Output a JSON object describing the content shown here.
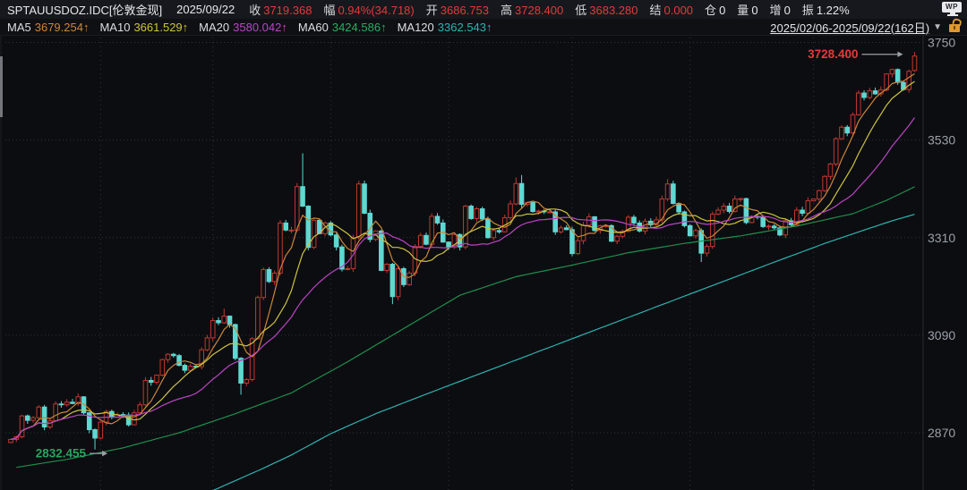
{
  "window": {
    "wp_label": "WP"
  },
  "header": {
    "symbol": "SPTAUUSDOZ.IDC[伦敦金现]",
    "date": "2025/09/22",
    "fields": [
      {
        "label": "收",
        "value": "3719.368",
        "color": "red"
      },
      {
        "label": "幅",
        "value": "0.94%(34.718)",
        "color": "red"
      },
      {
        "label": "开",
        "value": "3686.753",
        "color": "red"
      },
      {
        "label": "高",
        "value": "3728.400",
        "color": "red"
      },
      {
        "label": "低",
        "value": "3683.280",
        "color": "red"
      },
      {
        "label": "结",
        "value": "0.000",
        "color": "red"
      },
      {
        "label": "仓",
        "value": "0",
        "color": "white"
      },
      {
        "label": "量",
        "value": "0",
        "color": "white"
      },
      {
        "label": "增",
        "value": "0",
        "color": "white"
      },
      {
        "label": "振",
        "value": "1.22%",
        "color": "white"
      }
    ]
  },
  "ma_bar": {
    "items": [
      {
        "label": "MA5",
        "value": "3679.254",
        "arrow": "↑",
        "color": "#cc8636"
      },
      {
        "label": "MA10",
        "value": "3661.529",
        "arrow": "↑",
        "color": "#cdc33e"
      },
      {
        "label": "MA20",
        "value": "3580.042",
        "arrow": "↑",
        "color": "#bb44c4"
      },
      {
        "label": "MA60",
        "value": "3424.586",
        "arrow": "↑",
        "color": "#2cab5e"
      },
      {
        "label": "MA120",
        "value": "3362.543",
        "arrow": "↑",
        "color": "#2cb3b0"
      }
    ],
    "range": "2025/02/06-2025/09/22(162日)",
    "caret": "▼"
  },
  "chart_data": {
    "type": "candlestick",
    "title": "SPTAUUSDOZ.IDC 伦敦金现 日K 2025/02/06-2025/09/22",
    "y_ticks": [
      3750,
      3530,
      3310,
      3090,
      2870
    ],
    "y_range": [
      2870,
      3750
    ],
    "days": 162,
    "month_grid_days": [
      16,
      36,
      57,
      78,
      100,
      121,
      143
    ],
    "first_open": 2848,
    "closes": [
      2855,
      2861,
      2908,
      2898,
      2904,
      2928,
      2883,
      2897,
      2935,
      2933,
      2939,
      2936,
      2951,
      2915,
      2877,
      2858,
      2894,
      2918,
      2905,
      2911,
      2910,
      2888,
      2915,
      2933,
      2988,
      2984,
      3000,
      3035,
      3047,
      3044,
      3022,
      3011,
      3020,
      3019,
      3057,
      3084,
      3123,
      3118,
      3133,
      3114,
      3038,
      2982,
      2990,
      3082,
      3175,
      3238,
      3211,
      3230,
      3343,
      3327,
      3327,
      3425,
      3381,
      3288,
      3349,
      3319,
      3343,
      3316,
      3289,
      3239,
      3240,
      3310,
      3431,
      3365,
      3306,
      3325,
      3236,
      3250,
      3177,
      3240,
      3204,
      3230,
      3290,
      3315,
      3295,
      3358,
      3343,
      3300,
      3288,
      3317,
      3289,
      3381,
      3353,
      3375,
      3352,
      3310,
      3326,
      3323,
      3355,
      3386,
      3432,
      3385,
      3389,
      3369,
      3370,
      3368,
      3368,
      3323,
      3332,
      3328,
      3274,
      3303,
      3338,
      3357,
      3326,
      3337,
      3337,
      3302,
      3313,
      3324,
      3356,
      3343,
      3325,
      3347,
      3339,
      3350,
      3397,
      3431,
      3387,
      3368,
      3337,
      3314,
      3326,
      3275,
      3290,
      3363,
      3372,
      3381,
      3369,
      3397,
      3398,
      3344,
      3358,
      3357,
      3335,
      3336,
      3332,
      3316,
      3348,
      3339,
      3372,
      3365,
      3393,
      3397,
      3416,
      3448,
      3476,
      3533,
      3559,
      3546,
      3587,
      3636,
      3626,
      3641,
      3634,
      3643,
      3679,
      3689,
      3660,
      3644,
      3685,
      3719.368
    ],
    "open_overrides": {
      "0": 2848,
      "161": 3686.753
    },
    "high_overrides": {
      "38": 3150,
      "52": 3500,
      "62": 3438,
      "90": 3446,
      "91": 3451,
      "117": 3442,
      "118": 3438,
      "161": 3728.4
    },
    "low_overrides": {
      "15": 2832.455,
      "41": 2956,
      "68": 3160,
      "123": 3255,
      "161": 3683.28
    },
    "ma_overlays": [
      {
        "name": "MA5",
        "window": 5,
        "color": "#cc8636"
      },
      {
        "name": "MA10",
        "window": 10,
        "color": "#cdc33e"
      },
      {
        "name": "MA20",
        "window": 20,
        "color": "#bb44c4"
      },
      {
        "name": "MA60",
        "color": "#1f8f4d",
        "points": [
          [
            0,
            2790
          ],
          [
            10,
            2810
          ],
          [
            20,
            2836
          ],
          [
            30,
            2870
          ],
          [
            40,
            2913
          ],
          [
            50,
            2960
          ],
          [
            60,
            3030
          ],
          [
            70,
            3105
          ],
          [
            80,
            3180
          ],
          [
            90,
            3222
          ],
          [
            100,
            3248
          ],
          [
            110,
            3276
          ],
          [
            120,
            3297
          ],
          [
            130,
            3314
          ],
          [
            140,
            3336
          ],
          [
            150,
            3364
          ],
          [
            156,
            3394
          ],
          [
            161,
            3424.586
          ]
        ]
      },
      {
        "name": "MA120",
        "color": "#2cb3b0",
        "points": [
          [
            33,
            2723
          ],
          [
            40,
            2762
          ],
          [
            45,
            2790
          ],
          [
            50,
            2820
          ],
          [
            57,
            2868
          ],
          [
            65,
            2913
          ],
          [
            75,
            2962
          ],
          [
            85,
            3010
          ],
          [
            95,
            3058
          ],
          [
            105,
            3106
          ],
          [
            115,
            3154
          ],
          [
            125,
            3202
          ],
          [
            135,
            3250
          ],
          [
            145,
            3297
          ],
          [
            152,
            3327
          ],
          [
            157,
            3348
          ],
          [
            161,
            3362.543
          ]
        ]
      }
    ],
    "annotations": [
      {
        "text": "3728.400",
        "day": 161,
        "price": 3728.4,
        "color": "#e23b3b",
        "arrow_len": 46
      },
      {
        "text": "2832.455",
        "day": 15,
        "price": 2832.455,
        "color": "#2ba35e",
        "arrow_len": 20
      }
    ],
    "colors": {
      "up_candle": "#c03830",
      "down_candle": "#5fd8d2",
      "grid": "#31333b",
      "axis_line": "#2a2c33",
      "axis_label": "#9aa0a8",
      "arrow": "#9aa0a6",
      "background": "#0c0d11"
    },
    "legend_position": "top-bar",
    "grid": "dotted"
  }
}
